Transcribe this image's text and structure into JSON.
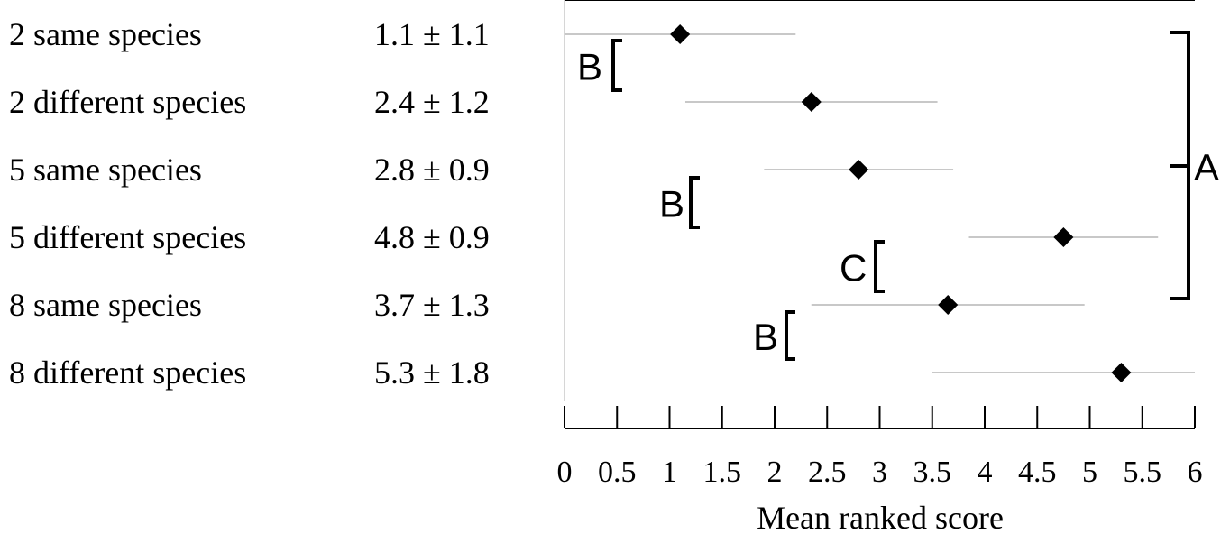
{
  "chart_data": {
    "type": "scatter",
    "xlabel": "Mean ranked score",
    "xlim": [
      0,
      6
    ],
    "xticks": [
      "0",
      "0.5",
      "1",
      "1.5",
      "2",
      "2.5",
      "3",
      "3.5",
      "4",
      "4.5",
      "5",
      "5.5",
      "6"
    ],
    "grid": false,
    "legend": "none",
    "colors": {
      "marker": "#000000",
      "errorbar": "#c8c8c8",
      "axis": "#000000"
    },
    "rows": [
      {
        "label": "2 same species",
        "stat": "1.1 ± 1.1",
        "mean": 1.1,
        "err": 1.1
      },
      {
        "label": "2 different species",
        "stat": "2.4 ± 1.2",
        "mean": 2.35,
        "err": 1.2
      },
      {
        "label": "5 same species",
        "stat": "2.8 ± 0.9",
        "mean": 2.8,
        "err": 0.9
      },
      {
        "label": "5 different species",
        "stat": "4.8 ± 0.9",
        "mean": 4.75,
        "err": 0.9
      },
      {
        "label": "8 same species",
        "stat": "3.7 ± 1.3",
        "mean": 3.65,
        "err": 1.3
      },
      {
        "label": "8 different species",
        "stat": "5.3 ± 1.8",
        "mean": 5.3,
        "err": 1.8
      }
    ],
    "significance_brackets": [
      {
        "letter": "B",
        "rows": [
          0,
          1
        ]
      },
      {
        "letter": "B",
        "rows": [
          2,
          3
        ]
      },
      {
        "letter": "C",
        "rows": [
          3,
          4
        ]
      },
      {
        "letter": "B",
        "rows": [
          4,
          5
        ]
      },
      {
        "letter": "A",
        "rows": [
          0,
          4
        ]
      }
    ]
  }
}
